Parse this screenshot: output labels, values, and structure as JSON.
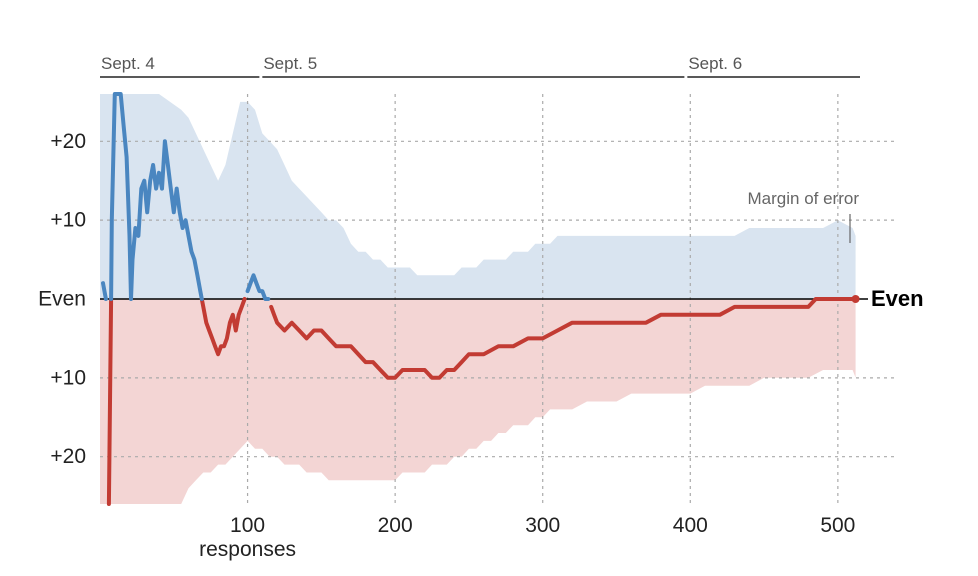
{
  "chart_data": {
    "type": "line",
    "title": "",
    "xlabel": "responses",
    "ylabel": "",
    "xlim": [
      0,
      515
    ],
    "ylim": [
      -26,
      26
    ],
    "grid": true,
    "x_ticks": [
      {
        "value": 100,
        "label": "100"
      },
      {
        "value": 200,
        "label": "200"
      },
      {
        "value": 300,
        "label": "300"
      },
      {
        "value": 400,
        "label": "400"
      },
      {
        "value": 500,
        "label": "500"
      }
    ],
    "y_ticks": [
      {
        "value": 20,
        "label": "+20"
      },
      {
        "value": 10,
        "label": "+10"
      },
      {
        "value": 0,
        "label": "Even"
      },
      {
        "value": -10,
        "label": "+10"
      },
      {
        "value": -20,
        "label": "+20"
      }
    ],
    "date_segments": [
      {
        "label": "Sept. 4",
        "start": 0,
        "end": 108
      },
      {
        "label": "Sept. 5",
        "start": 110,
        "end": 396
      },
      {
        "label": "Sept. 6",
        "start": 398,
        "end": 515
      }
    ],
    "annotations": {
      "margin_of_error": "Margin of error",
      "end_label": "Even"
    },
    "colors": {
      "blue_line": "#4a86c0",
      "red_line": "#c23b33",
      "blue_band": "#d9e4f0",
      "red_band": "#f3d5d4",
      "grid": "#aaaaaa",
      "zero_line": "#000000"
    },
    "series": [
      {
        "values": [
          [
            0,
            0
          ],
          [
            2,
            2
          ],
          [
            4,
            0
          ],
          [
            6,
            -30
          ],
          [
            8,
            10
          ],
          [
            10,
            30
          ],
          [
            12,
            40
          ],
          [
            14,
            30
          ],
          [
            16,
            22
          ],
          [
            18,
            18
          ],
          [
            20,
            8
          ],
          [
            21,
            0
          ],
          [
            22,
            5
          ],
          [
            24,
            9
          ],
          [
            26,
            8
          ],
          [
            28,
            14
          ],
          [
            30,
            15
          ],
          [
            32,
            11
          ],
          [
            34,
            15
          ],
          [
            36,
            17
          ],
          [
            38,
            14
          ],
          [
            40,
            16
          ],
          [
            42,
            14
          ],
          [
            44,
            20
          ],
          [
            46,
            17
          ],
          [
            48,
            14
          ],
          [
            50,
            11
          ],
          [
            52,
            14
          ],
          [
            54,
            11
          ],
          [
            56,
            9
          ],
          [
            58,
            10
          ],
          [
            60,
            8
          ],
          [
            62,
            6
          ],
          [
            64,
            5
          ],
          [
            66,
            3
          ],
          [
            68,
            1
          ],
          [
            70,
            -1
          ],
          [
            72,
            -3
          ],
          [
            74,
            -4
          ],
          [
            76,
            -5
          ],
          [
            78,
            -6
          ],
          [
            80,
            -7
          ],
          [
            82,
            -6
          ],
          [
            84,
            -6
          ],
          [
            86,
            -5
          ],
          [
            88,
            -3
          ],
          [
            90,
            -2
          ],
          [
            92,
            -4
          ],
          [
            94,
            -2
          ],
          [
            96,
            -1
          ],
          [
            98,
            0
          ],
          [
            100,
            1
          ],
          [
            102,
            2
          ],
          [
            104,
            3
          ],
          [
            106,
            2
          ],
          [
            108,
            1
          ],
          [
            110,
            1
          ],
          [
            112,
            0
          ],
          [
            114,
            0
          ],
          [
            116,
            -1
          ],
          [
            118,
            -2
          ],
          [
            120,
            -3
          ],
          [
            125,
            -4
          ],
          [
            130,
            -3
          ],
          [
            135,
            -4
          ],
          [
            140,
            -5
          ],
          [
            145,
            -4
          ],
          [
            150,
            -4
          ],
          [
            155,
            -5
          ],
          [
            160,
            -6
          ],
          [
            165,
            -6
          ],
          [
            170,
            -6
          ],
          [
            175,
            -7
          ],
          [
            180,
            -8
          ],
          [
            185,
            -8
          ],
          [
            190,
            -9
          ],
          [
            195,
            -10
          ],
          [
            200,
            -10
          ],
          [
            205,
            -9
          ],
          [
            210,
            -9
          ],
          [
            215,
            -9
          ],
          [
            220,
            -9
          ],
          [
            225,
            -10
          ],
          [
            230,
            -10
          ],
          [
            235,
            -9
          ],
          [
            240,
            -9
          ],
          [
            245,
            -8
          ],
          [
            250,
            -7
          ],
          [
            255,
            -7
          ],
          [
            260,
            -7
          ],
          [
            270,
            -6
          ],
          [
            280,
            -6
          ],
          [
            290,
            -5
          ],
          [
            300,
            -5
          ],
          [
            310,
            -4
          ],
          [
            320,
            -3
          ],
          [
            330,
            -3
          ],
          [
            340,
            -3
          ],
          [
            350,
            -3
          ],
          [
            360,
            -3
          ],
          [
            370,
            -3
          ],
          [
            380,
            -2
          ],
          [
            390,
            -2
          ],
          [
            400,
            -2
          ],
          [
            410,
            -2
          ],
          [
            420,
            -2
          ],
          [
            430,
            -1
          ],
          [
            440,
            -1
          ],
          [
            450,
            -1
          ],
          [
            460,
            -1
          ],
          [
            470,
            -1
          ],
          [
            480,
            -1
          ],
          [
            485,
            0
          ],
          [
            490,
            0
          ],
          [
            495,
            0
          ],
          [
            500,
            0
          ],
          [
            505,
            0
          ],
          [
            510,
            0
          ],
          [
            512,
            0
          ]
        ]
      }
    ],
    "margin_of_error_band": {
      "upper": [
        [
          0,
          26
        ],
        [
          20,
          26
        ],
        [
          40,
          26
        ],
        [
          55,
          24
        ],
        [
          60,
          23
        ],
        [
          65,
          21
        ],
        [
          70,
          19
        ],
        [
          75,
          17
        ],
        [
          80,
          15
        ],
        [
          85,
          17
        ],
        [
          90,
          21
        ],
        [
          95,
          25
        ],
        [
          100,
          25
        ],
        [
          105,
          24
        ],
        [
          110,
          21
        ],
        [
          115,
          20
        ],
        [
          120,
          19
        ],
        [
          125,
          17
        ],
        [
          130,
          15
        ],
        [
          135,
          14
        ],
        [
          140,
          13
        ],
        [
          145,
          12
        ],
        [
          150,
          11
        ],
        [
          155,
          10
        ],
        [
          160,
          10
        ],
        [
          165,
          9
        ],
        [
          170,
          7
        ],
        [
          175,
          6
        ],
        [
          180,
          6
        ],
        [
          185,
          5
        ],
        [
          190,
          5
        ],
        [
          195,
          4
        ],
        [
          200,
          4
        ],
        [
          205,
          4
        ],
        [
          210,
          4
        ],
        [
          215,
          3
        ],
        [
          220,
          3
        ],
        [
          225,
          3
        ],
        [
          230,
          3
        ],
        [
          235,
          3
        ],
        [
          240,
          3
        ],
        [
          245,
          4
        ],
        [
          250,
          4
        ],
        [
          255,
          4
        ],
        [
          260,
          5
        ],
        [
          265,
          5
        ],
        [
          270,
          5
        ],
        [
          275,
          5
        ],
        [
          280,
          6
        ],
        [
          285,
          6
        ],
        [
          290,
          6
        ],
        [
          295,
          7
        ],
        [
          300,
          7
        ],
        [
          305,
          7
        ],
        [
          310,
          8
        ],
        [
          320,
          8
        ],
        [
          330,
          8
        ],
        [
          340,
          8
        ],
        [
          350,
          8
        ],
        [
          360,
          8
        ],
        [
          370,
          8
        ],
        [
          380,
          8
        ],
        [
          390,
          8
        ],
        [
          400,
          8
        ],
        [
          410,
          8
        ],
        [
          420,
          8
        ],
        [
          430,
          8
        ],
        [
          440,
          9
        ],
        [
          450,
          9
        ],
        [
          460,
          9
        ],
        [
          470,
          9
        ],
        [
          480,
          9
        ],
        [
          490,
          9
        ],
        [
          500,
          10
        ],
        [
          510,
          9
        ],
        [
          512,
          8
        ]
      ],
      "lower": [
        [
          0,
          -26
        ],
        [
          20,
          -26
        ],
        [
          40,
          -26
        ],
        [
          55,
          -26
        ],
        [
          60,
          -24
        ],
        [
          65,
          -23
        ],
        [
          70,
          -22
        ],
        [
          75,
          -22
        ],
        [
          80,
          -21
        ],
        [
          85,
          -21
        ],
        [
          90,
          -20
        ],
        [
          95,
          -19
        ],
        [
          100,
          -18
        ],
        [
          105,
          -19
        ],
        [
          110,
          -19
        ],
        [
          115,
          -20
        ],
        [
          120,
          -20
        ],
        [
          125,
          -21
        ],
        [
          130,
          -21
        ],
        [
          135,
          -21
        ],
        [
          140,
          -22
        ],
        [
          145,
          -22
        ],
        [
          150,
          -22
        ],
        [
          155,
          -23
        ],
        [
          160,
          -23
        ],
        [
          165,
          -23
        ],
        [
          170,
          -23
        ],
        [
          175,
          -23
        ],
        [
          180,
          -23
        ],
        [
          185,
          -23
        ],
        [
          190,
          -23
        ],
        [
          195,
          -23
        ],
        [
          200,
          -23
        ],
        [
          205,
          -22
        ],
        [
          210,
          -22
        ],
        [
          215,
          -22
        ],
        [
          220,
          -22
        ],
        [
          225,
          -21
        ],
        [
          230,
          -21
        ],
        [
          235,
          -21
        ],
        [
          240,
          -20
        ],
        [
          245,
          -20
        ],
        [
          250,
          -19
        ],
        [
          255,
          -19
        ],
        [
          260,
          -18
        ],
        [
          265,
          -18
        ],
        [
          270,
          -17
        ],
        [
          275,
          -17
        ],
        [
          280,
          -16
        ],
        [
          285,
          -16
        ],
        [
          290,
          -16
        ],
        [
          295,
          -15
        ],
        [
          300,
          -15
        ],
        [
          305,
          -14
        ],
        [
          310,
          -14
        ],
        [
          320,
          -14
        ],
        [
          330,
          -13
        ],
        [
          340,
          -13
        ],
        [
          350,
          -13
        ],
        [
          360,
          -12
        ],
        [
          370,
          -12
        ],
        [
          380,
          -12
        ],
        [
          390,
          -12
        ],
        [
          400,
          -12
        ],
        [
          410,
          -11
        ],
        [
          420,
          -11
        ],
        [
          430,
          -11
        ],
        [
          440,
          -11
        ],
        [
          450,
          -10
        ],
        [
          460,
          -10
        ],
        [
          470,
          -10
        ],
        [
          480,
          -10
        ],
        [
          490,
          -9
        ],
        [
          500,
          -9
        ],
        [
          510,
          -9
        ],
        [
          512,
          -10
        ]
      ]
    }
  }
}
